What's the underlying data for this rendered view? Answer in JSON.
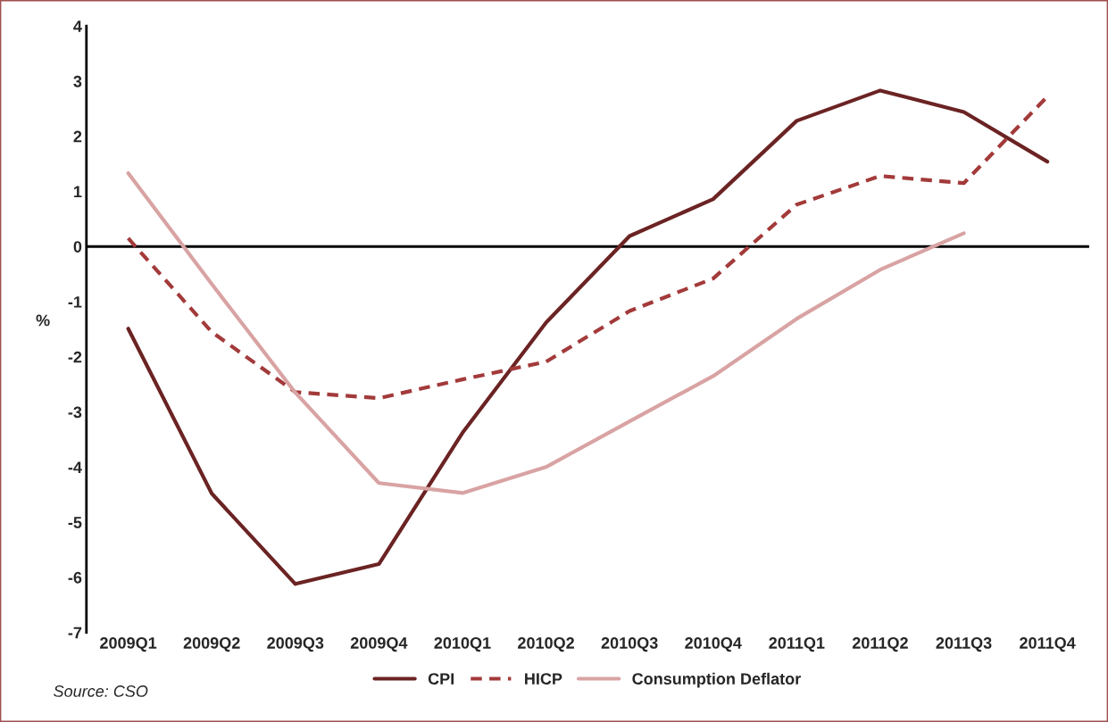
{
  "chart_data": {
    "type": "line",
    "ylabel": "%",
    "categories": [
      "2009Q1",
      "2009Q2",
      "2009Q3",
      "2009Q4",
      "2010Q1",
      "2010Q2",
      "2010Q3",
      "2010Q4",
      "2011Q1",
      "2011Q2",
      "2011Q3",
      "2011Q4"
    ],
    "series": [
      {
        "name": "CPI",
        "color": "#6b2323",
        "line_style": "solid",
        "values": [
          -1.49,
          -4.48,
          -6.12,
          -5.76,
          -3.38,
          -1.38,
          0.19,
          0.86,
          2.28,
          2.83,
          2.44,
          1.54
        ]
      },
      {
        "name": "HICP",
        "color": "#a33a3a",
        "line_style": "dashed",
        "values": [
          0.15,
          -1.55,
          -2.64,
          -2.75,
          -2.41,
          -2.09,
          -1.17,
          -0.58,
          0.76,
          1.28,
          1.15,
          2.72
        ]
      },
      {
        "name": "Consumption Deflator",
        "color": "#d9a3a3",
        "line_style": "solid",
        "values": [
          1.33,
          -0.68,
          -2.65,
          -4.29,
          -4.47,
          -4.0,
          -3.17,
          -2.35,
          -1.31,
          -0.42,
          0.24,
          null
        ]
      }
    ],
    "ylim": [
      -7,
      4
    ],
    "yticks": [
      -7,
      -6,
      -5,
      -4,
      -3,
      -2,
      -1,
      0,
      1,
      2,
      3,
      4
    ],
    "ref_lines": [
      {
        "axis": "y",
        "value": 0,
        "color": "#000000"
      }
    ],
    "grid": false,
    "legend": "bottom",
    "annotations": [
      "Source: CSO"
    ]
  }
}
